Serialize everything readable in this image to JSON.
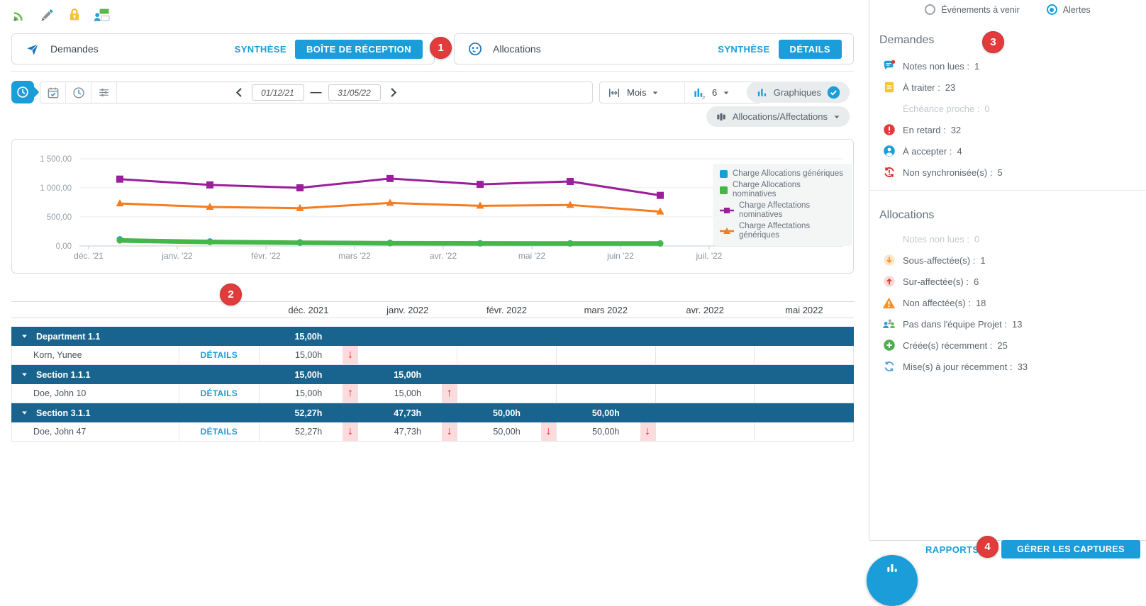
{
  "topbar": {
    "icons": [
      "rss",
      "pencil",
      "lock",
      "capture"
    ]
  },
  "panels": {
    "demandes": {
      "title": "Demandes",
      "synthese_label": "SYNTHÈSE",
      "inbox_label": "BOÎTE DE RÉCEPTION"
    },
    "allocations": {
      "title": "Allocations",
      "synthese_label": "SYNTHÈSE",
      "details_label": "DÉTAILS"
    }
  },
  "callouts": {
    "c1": "1",
    "c2": "2",
    "c3": "3",
    "c4": "4"
  },
  "toolbar": {
    "date_from": "01/12/21",
    "date_to": "31/05/22",
    "range_separator": "—",
    "scale_value": "Mois",
    "bars_value": "6",
    "graphs_label": "Graphiques",
    "dataset_label": "Allocations/Affectations"
  },
  "chart_data": {
    "type": "line",
    "x_ticks": [
      "déc. '21",
      "janv. '22",
      "févr. '22",
      "mars '22",
      "avr. '22",
      "mai '22",
      "juin '22",
      "juil. '22"
    ],
    "y_ticks": [
      "0,00",
      "500,00",
      "1 000,00",
      "1 500,00"
    ],
    "ylim": [
      0,
      1500
    ],
    "grid": true,
    "legend_position": "right",
    "series": [
      {
        "name": "Charge Allocations génériques",
        "color": "#1b9dd9",
        "marker": "circle",
        "width": 3,
        "values": [
          115,
          78,
          62,
          54,
          47,
          45,
          44
        ]
      },
      {
        "name": "Charge Allocations nominatives",
        "color": "#45b649",
        "marker": "circle",
        "width": 6.5,
        "values": [
          95,
          68,
          55,
          48,
          44,
          42,
          42
        ]
      },
      {
        "name": "Charge Affectations nominatives",
        "color": "#9b1f9b",
        "marker": "square",
        "width": 3,
        "values": [
          1150,
          1050,
          1000,
          1160,
          1060,
          1110,
          870
        ]
      },
      {
        "name": "Charge Affectations génériques",
        "color": "#f57c20",
        "marker": "triangle",
        "width": 3,
        "values": [
          730,
          670,
          650,
          740,
          690,
          705,
          590
        ]
      }
    ]
  },
  "table": {
    "details_label": "DÉTAILS",
    "columns": [
      "déc. 2021",
      "janv. 2022",
      "févr. 2022",
      "mars 2022",
      "avr. 2022",
      "mai 2022"
    ],
    "rows": [
      {
        "type": "group",
        "name": "Department 1.1",
        "cells": [
          {
            "v": "15,00h"
          },
          null,
          null,
          null,
          null,
          null
        ]
      },
      {
        "type": "person",
        "name": "Korn, Yunee",
        "cells": [
          {
            "v": "15,00h",
            "arrow": "down"
          },
          null,
          null,
          null,
          null,
          null
        ]
      },
      {
        "type": "group",
        "name": "Section 1.1.1",
        "cells": [
          {
            "v": "15,00h"
          },
          {
            "v": "15,00h"
          },
          null,
          null,
          null,
          null
        ]
      },
      {
        "type": "person",
        "name": "Doe, John 10",
        "cells": [
          {
            "v": "15,00h",
            "arrow": "up"
          },
          {
            "v": "15,00h",
            "arrow": "up"
          },
          null,
          null,
          null,
          null
        ]
      },
      {
        "type": "group",
        "name": "Section 3.1.1",
        "cells": [
          {
            "v": "52,27h"
          },
          {
            "v": "47,73h"
          },
          {
            "v": "50,00h"
          },
          {
            "v": "50,00h"
          },
          null,
          null
        ]
      },
      {
        "type": "person",
        "name": "Doe, John 47",
        "cells": [
          {
            "v": "52,27h",
            "arrow": "down"
          },
          {
            "v": "47,73h",
            "arrow": "down"
          },
          {
            "v": "50,00h",
            "arrow": "down"
          },
          {
            "v": "50,00h",
            "arrow": "down"
          },
          null,
          null
        ]
      }
    ]
  },
  "sidebar": {
    "filter": {
      "events_label": "Événements à venir",
      "alerts_label": "Alertes",
      "selected": "alerts"
    },
    "demandes": {
      "title": "Demandes",
      "items": [
        {
          "icon": "notes",
          "label": "Notes non lues",
          "value": "1"
        },
        {
          "icon": "document",
          "label": "À traiter",
          "value": "23"
        },
        {
          "icon": "none",
          "label": "Échéance proche",
          "value": "0",
          "disabled": true
        },
        {
          "icon": "alert-circle",
          "label": "En retard",
          "value": "32"
        },
        {
          "icon": "person-circle",
          "label": "À accepter",
          "value": "4"
        },
        {
          "icon": "sync-alert",
          "label": "Non synchronisée(s)",
          "value": "5"
        }
      ]
    },
    "allocations": {
      "title": "Allocations",
      "items": [
        {
          "icon": "none",
          "label": "Notes non lues",
          "value": "0",
          "disabled": true
        },
        {
          "icon": "down-circle",
          "label": "Sous-affectée(s)",
          "value": "1"
        },
        {
          "icon": "up-circle",
          "label": "Sur-affectée(s)",
          "value": "6"
        },
        {
          "icon": "warning",
          "label": "Non affectée(s)",
          "value": "18"
        },
        {
          "icon": "team",
          "label": "Pas dans l'équipe Projet",
          "value": "13"
        },
        {
          "icon": "plus-circle",
          "label": "Créée(s) récemment",
          "value": "25"
        },
        {
          "icon": "refresh",
          "label": "Mise(s) à jour récemment",
          "value": "33"
        }
      ]
    },
    "footer": {
      "rapports_label": "RAPPORTS",
      "gerer_label": "GÉRER LES CAPTURES"
    }
  },
  "colors": {
    "primary": "#1b9dd9",
    "group_row": "#19648e",
    "badge_red": "#e23b3b",
    "arrow_red": "#e8262d",
    "arrow_band_pink": "#fcdbdd"
  }
}
